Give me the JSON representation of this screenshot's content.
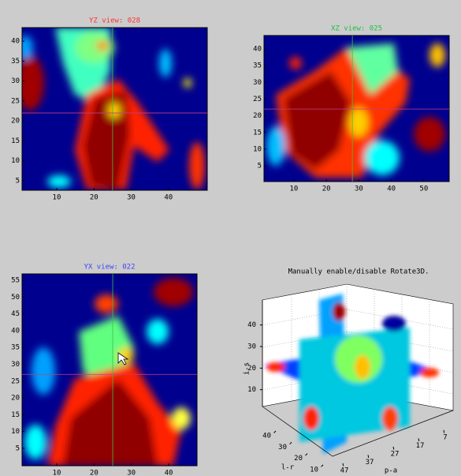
{
  "panels": [
    {
      "title": "YZ view: 028",
      "title_color": "#ff3030",
      "xlim": [
        0.7,
        50.4
      ],
      "ylim": [
        2.6,
        43.4
      ],
      "xticks": [
        10,
        20,
        30,
        40
      ],
      "yticks": [
        5,
        10,
        15,
        20,
        25,
        30,
        35,
        40
      ],
      "crosshair": {
        "x": 25,
        "y": 22
      }
    },
    {
      "title": "XZ view: 025",
      "title_color": "#20c040",
      "xlim": [
        0.8,
        57.8
      ],
      "ylim": [
        0.3,
        44.0
      ],
      "xticks": [
        10,
        20,
        30,
        40,
        50
      ],
      "yticks": [
        5,
        10,
        15,
        20,
        25,
        30,
        35,
        40
      ],
      "crosshair": {
        "x": 28,
        "y": 22
      }
    },
    {
      "title": "YX view: 022",
      "title_color": "#4040ff",
      "xlim": [
        0.7,
        47.6
      ],
      "ylim": [
        -0.2,
        56.9
      ],
      "xticks": [
        10,
        20,
        30,
        40
      ],
      "yticks": [
        5,
        10,
        15,
        20,
        25,
        30,
        35,
        40,
        45,
        50,
        55
      ],
      "crosshair": {
        "x": 25,
        "y": 27
      }
    }
  ],
  "view3d": {
    "title": "Manually enable/disable Rotate3D.",
    "xlabel": "p-a",
    "ylabel": "l-r",
    "zlabel": "i-s",
    "xlim": [
      50,
      3
    ],
    "xticks": [
      47,
      37,
      27,
      17,
      7
    ],
    "ylim": [
      46,
      6
    ],
    "yticks": [
      40,
      30,
      20,
      10
    ],
    "zlim": [
      0,
      45
    ],
    "zticks": [
      10,
      20,
      30,
      40
    ]
  }
}
